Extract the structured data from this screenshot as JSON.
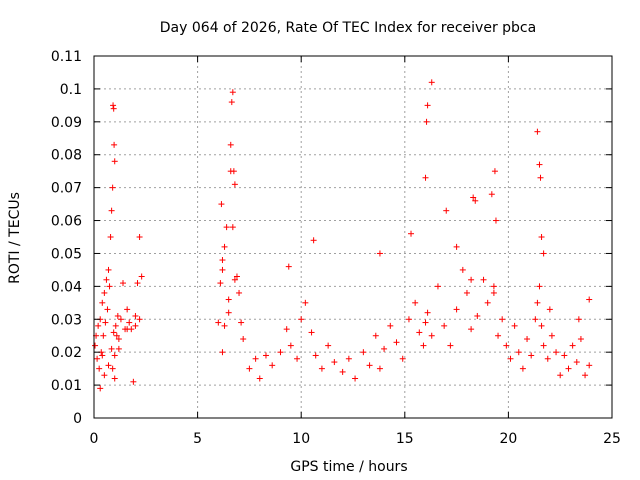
{
  "chart_data": {
    "type": "scatter",
    "title": "Day 064 of 2026, Rate Of TEC Index for receiver pbca",
    "xlabel": "GPS time / hours",
    "ylabel": "ROTI / TECUs",
    "xlim": [
      0,
      25
    ],
    "ylim": [
      0,
      0.11
    ],
    "xticks": [
      "0",
      "5",
      "10",
      "15",
      "20",
      "25"
    ],
    "yticks": [
      "0",
      "0.01",
      "0.02",
      "0.03",
      "0.04",
      "0.05",
      "0.06",
      "0.07",
      "0.08",
      "0.09",
      "0.1",
      "0.11"
    ],
    "grid": true,
    "marker": "+",
    "color": "#ff0000",
    "series": [
      {
        "x": [
          0.05,
          0.1,
          0.15,
          0.2,
          0.25,
          0.3,
          0.35,
          0.4,
          0.45,
          0.5,
          0.55,
          0.6,
          0.65,
          0.7,
          0.75,
          0.8,
          0.85,
          0.9,
          0.92,
          0.95,
          0.97,
          1.0,
          1.05,
          1.1,
          1.15,
          1.2,
          1.3,
          1.4,
          1.5,
          1.6,
          1.7,
          1.8,
          1.9,
          2.0,
          2.1,
          2.2,
          2.3,
          0.3,
          0.5,
          0.7,
          0.85,
          0.9,
          0.95,
          1.0,
          1.0,
          1.2,
          1.6,
          2.2,
          2.0,
          0.4,
          6.0,
          6.1,
          6.2,
          6.3,
          6.4,
          6.5,
          6.6,
          6.65,
          6.7,
          6.75,
          6.8,
          6.9,
          7.0,
          7.1,
          7.2,
          6.15,
          6.2,
          6.5,
          6.6,
          6.7,
          6.8,
          6.2,
          6.3,
          7.5,
          7.8,
          8.0,
          8.3,
          8.6,
          9.0,
          9.3,
          9.5,
          9.8,
          10.0,
          10.2,
          10.5,
          10.7,
          11.0,
          11.3,
          11.6,
          12.0,
          12.3,
          12.6,
          13.0,
          13.3,
          13.6,
          13.8,
          14.0,
          14.3,
          14.6,
          14.9,
          15.2,
          15.5,
          15.7,
          15.9,
          16.0,
          16.1,
          16.3,
          16.6,
          16.9,
          17.2,
          17.5,
          17.8,
          18.0,
          18.2,
          18.5,
          18.8,
          19.0,
          19.3,
          9.4,
          10.6,
          13.8,
          15.3,
          16.0,
          16.05,
          16.1,
          16.3,
          17.0,
          17.5,
          18.2,
          18.4,
          19.2,
          19.35,
          19.4,
          19.5,
          19.7,
          19.9,
          20.1,
          20.3,
          20.5,
          20.7,
          20.9,
          21.1,
          21.3,
          21.4,
          21.5,
          21.6,
          21.7,
          21.9,
          22.1,
          22.3,
          22.5,
          22.7,
          22.9,
          23.1,
          23.3,
          23.5,
          23.7,
          23.9,
          21.4,
          21.5,
          21.55,
          21.6,
          21.7,
          22.0,
          23.4,
          23.9,
          19.3,
          18.3
        ],
        "y": [
          0.022,
          0.025,
          0.018,
          0.028,
          0.015,
          0.03,
          0.02,
          0.035,
          0.025,
          0.038,
          0.029,
          0.042,
          0.033,
          0.045,
          0.04,
          0.055,
          0.063,
          0.07,
          0.095,
          0.094,
          0.083,
          0.078,
          0.028,
          0.025,
          0.031,
          0.024,
          0.03,
          0.041,
          0.027,
          0.033,
          0.029,
          0.027,
          0.011,
          0.031,
          0.041,
          0.055,
          0.043,
          0.009,
          0.013,
          0.016,
          0.021,
          0.015,
          0.026,
          0.019,
          0.012,
          0.021,
          0.027,
          0.03,
          0.028,
          0.019,
          0.029,
          0.041,
          0.048,
          0.052,
          0.058,
          0.032,
          0.075,
          0.096,
          0.099,
          0.075,
          0.071,
          0.043,
          0.038,
          0.029,
          0.024,
          0.065,
          0.045,
          0.036,
          0.083,
          0.058,
          0.042,
          0.02,
          0.028,
          0.015,
          0.018,
          0.012,
          0.019,
          0.016,
          0.02,
          0.027,
          0.022,
          0.018,
          0.03,
          0.035,
          0.026,
          0.019,
          0.015,
          0.022,
          0.017,
          0.014,
          0.018,
          0.012,
          0.02,
          0.016,
          0.025,
          0.015,
          0.021,
          0.028,
          0.023,
          0.018,
          0.03,
          0.035,
          0.026,
          0.022,
          0.029,
          0.032,
          0.025,
          0.04,
          0.028,
          0.022,
          0.033,
          0.045,
          0.038,
          0.027,
          0.031,
          0.042,
          0.035,
          0.04,
          0.046,
          0.054,
          0.05,
          0.056,
          0.073,
          0.09,
          0.095,
          0.102,
          0.063,
          0.052,
          0.042,
          0.066,
          0.068,
          0.075,
          0.06,
          0.025,
          0.03,
          0.022,
          0.018,
          0.028,
          0.02,
          0.015,
          0.024,
          0.019,
          0.03,
          0.035,
          0.04,
          0.028,
          0.022,
          0.018,
          0.025,
          0.02,
          0.013,
          0.019,
          0.015,
          0.022,
          0.017,
          0.024,
          0.013,
          0.016,
          0.087,
          0.077,
          0.073,
          0.055,
          0.05,
          0.033,
          0.03,
          0.036,
          0.038,
          0.067
        ]
      }
    ]
  }
}
